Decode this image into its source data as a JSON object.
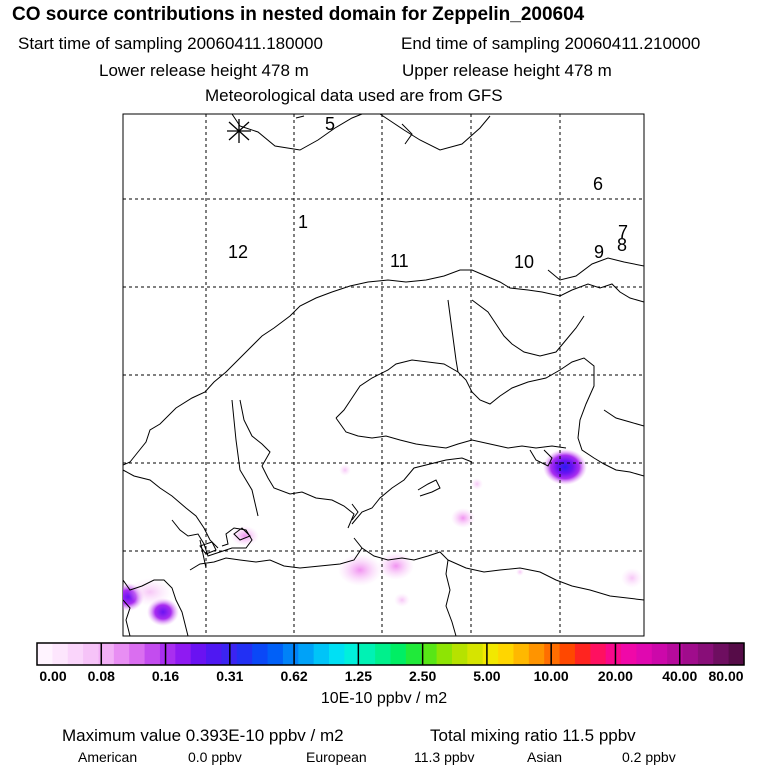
{
  "header": {
    "title": "CO  source contributions in nested domain for Zeppelin_200604",
    "start_label": "Start time of sampling 20060411.180000",
    "end_label": "End time of sampling 20060411.210000",
    "lower_label": "Lower release height  478 m",
    "upper_label": "Upper release height  478 m",
    "met_label": "Meteorological data used are from GFS"
  },
  "map": {
    "trajectory_labels": [
      "5",
      "6",
      "1",
      "7",
      "12",
      "11",
      "10",
      "9",
      "8"
    ],
    "receptor_marker": "asterisk"
  },
  "colorbar": {
    "tick_labels": [
      "0.00",
      "0.08",
      "0.16",
      "0.31",
      "0.62",
      "1.25",
      "2.50",
      "5.00",
      "10.00",
      "20.00",
      "40.00",
      "80.00"
    ],
    "units": "10E-10 ppbv / m2",
    "colors": [
      "#fff4ff",
      "#fde6fd",
      "#fad5fb",
      "#f6c3f8",
      "#f2b0f6",
      "#e88ef3",
      "#da6ef0",
      "#c34cef",
      "#a92ef0",
      "#8f1af2",
      "#6a12f2",
      "#4f18f2",
      "#3b24f2",
      "#2230f4",
      "#0a48f7",
      "#0060f8",
      "#0082f8",
      "#00a2f8",
      "#00c4f8",
      "#00e0f4",
      "#00f0dc",
      "#00f2b4",
      "#00f08c",
      "#00ee64",
      "#20ea3a",
      "#58e616",
      "#8ee404",
      "#b6e200",
      "#d6e400",
      "#f2e800",
      "#ffd600",
      "#ffb800",
      "#ff9400",
      "#ff6e00",
      "#ff4800",
      "#ff2420",
      "#ff1060",
      "#f8088c",
      "#f008a8",
      "#e008b0",
      "#cc08aa",
      "#b60a9c",
      "#a00c8c",
      "#880e78",
      "#6e0e60",
      "#560c48"
    ]
  },
  "summary": {
    "max_label": "Maximum value  0.393E-10 ppbv / m2",
    "total_label": "Total mixing ratio      11.5 ppbv",
    "american_label": "American",
    "american_value": "0.0 ppbv",
    "european_label": "European",
    "european_value": "11.3 ppbv",
    "asian_label": "Asian",
    "asian_value": "0.2 ppbv"
  }
}
